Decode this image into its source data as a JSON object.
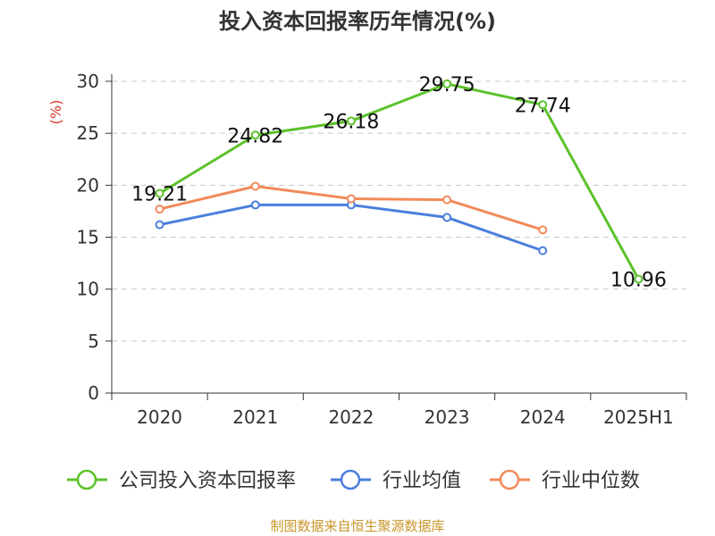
{
  "chart_data": {
    "type": "line",
    "title": "投入资本回报率历年情况(%)",
    "ylabel": "(%)",
    "ylim": [
      0,
      30
    ],
    "yticks": [
      0,
      5,
      10,
      15,
      20,
      25,
      30
    ],
    "categories": [
      "2020",
      "2021",
      "2022",
      "2023",
      "2024",
      "2025H1"
    ],
    "grid": true,
    "legend_position": "bottom",
    "series": [
      {
        "name": "公司投入资本回报率",
        "color": "#5cc22b",
        "values": [
          19.21,
          24.82,
          26.18,
          29.75,
          27.74,
          10.96
        ],
        "labels": true
      },
      {
        "name": "行业均值",
        "color": "#4a7fdc",
        "values": [
          16.2,
          18.1,
          18.1,
          16.9,
          13.7,
          null
        ],
        "labels": false
      },
      {
        "name": "行业中位数",
        "color": "#f28a5a",
        "values": [
          17.7,
          19.9,
          18.7,
          18.6,
          15.7,
          null
        ],
        "labels": false
      }
    ]
  },
  "source_text": "制图数据来自恒生聚源数据库"
}
